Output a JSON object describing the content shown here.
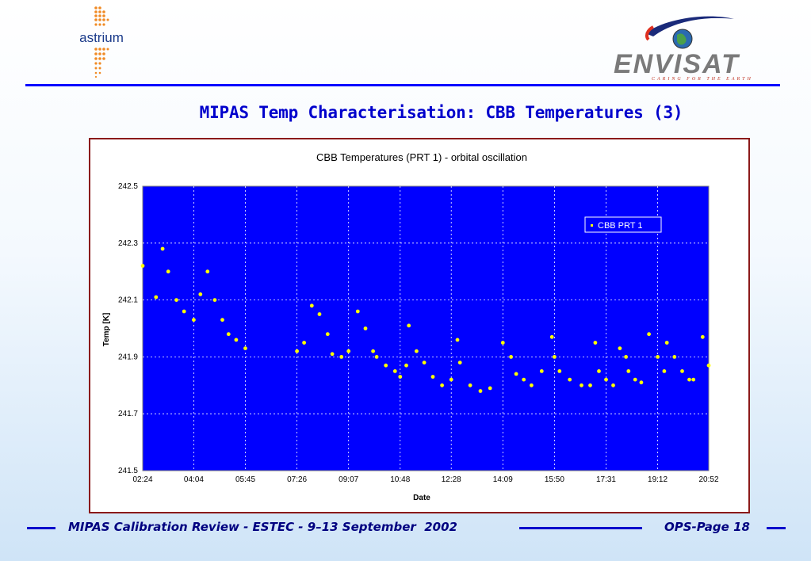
{
  "header": {
    "astrium_logo_text": "astrium",
    "envisat_logo_text": "ENVISAT",
    "envisat_tagline": "CARING FOR THE EARTH"
  },
  "slide_title": "MIPAS Temp Characterisation: CBB Temperatures (3)",
  "footer": {
    "text": "MIPAS Calibration Review - ESTEC - 9–13 September  2002",
    "page_label": "OPS-Page 18"
  },
  "colors": {
    "accent_blue": "#0000ff",
    "plot_background": "#0000ff",
    "series_color": "#ffff00",
    "title_blue": "#0000cc"
  },
  "chart_data": {
    "type": "scatter",
    "title": "CBB Temperatures (PRT 1) - orbital oscillation",
    "xlabel": "Date",
    "ylabel": "Temp [K]",
    "x_tick_labels": [
      "02:24",
      "04:04",
      "05:45",
      "07:26",
      "09:07",
      "10:48",
      "12:28",
      "14:09",
      "15:50",
      "17:31",
      "19:12",
      "20:52"
    ],
    "y_tick_labels": [
      "241.5",
      "241.7",
      "241.9",
      "242.1",
      "242.3",
      "242.5"
    ],
    "ylim": [
      241.5,
      242.5
    ],
    "grid": true,
    "legend_position": "top-right",
    "series": [
      {
        "name": "CBB PRT 1",
        "x": [
          "02:24",
          "02:50",
          "03:03",
          "03:14",
          "03:30",
          "03:45",
          "04:04",
          "04:17",
          "04:31",
          "04:45",
          "05:00",
          "05:12",
          "05:27",
          "05:45",
          "07:26",
          "07:40",
          "07:55",
          "08:10",
          "08:26",
          "08:35",
          "08:53",
          "09:07",
          "09:25",
          "09:40",
          "09:55",
          "10:02",
          "10:20",
          "10:38",
          "10:48",
          "11:00",
          "11:05",
          "11:20",
          "11:35",
          "11:52",
          "12:10",
          "12:28",
          "12:40",
          "12:45",
          "13:05",
          "13:25",
          "13:44",
          "14:09",
          "14:25",
          "14:35",
          "14:50",
          "15:05",
          "15:25",
          "15:45",
          "15:50",
          "16:00",
          "16:20",
          "16:43",
          "17:00",
          "17:10",
          "17:17",
          "17:31",
          "17:45",
          "17:58",
          "18:10",
          "18:15",
          "18:28",
          "18:40",
          "18:55",
          "19:12",
          "19:25",
          "19:30",
          "19:45",
          "20:00",
          "20:14",
          "20:22",
          "20:40",
          "20:52"
        ],
        "y": [
          242.22,
          242.11,
          242.28,
          242.2,
          242.1,
          242.06,
          242.03,
          242.12,
          242.2,
          242.1,
          242.03,
          241.98,
          241.96,
          241.93,
          241.92,
          241.95,
          242.08,
          242.05,
          241.98,
          241.91,
          241.9,
          241.92,
          242.06,
          242.0,
          241.92,
          241.9,
          241.87,
          241.85,
          241.83,
          241.87,
          242.01,
          241.92,
          241.88,
          241.83,
          241.8,
          241.82,
          241.96,
          241.88,
          241.8,
          241.78,
          241.79,
          241.95,
          241.9,
          241.84,
          241.82,
          241.8,
          241.85,
          241.97,
          241.9,
          241.85,
          241.82,
          241.8,
          241.8,
          241.95,
          241.85,
          241.82,
          241.8,
          241.93,
          241.9,
          241.85,
          241.82,
          241.81,
          241.98,
          241.9,
          241.85,
          241.95,
          241.9,
          241.85,
          241.82,
          241.82,
          241.97,
          241.87
        ]
      }
    ]
  }
}
